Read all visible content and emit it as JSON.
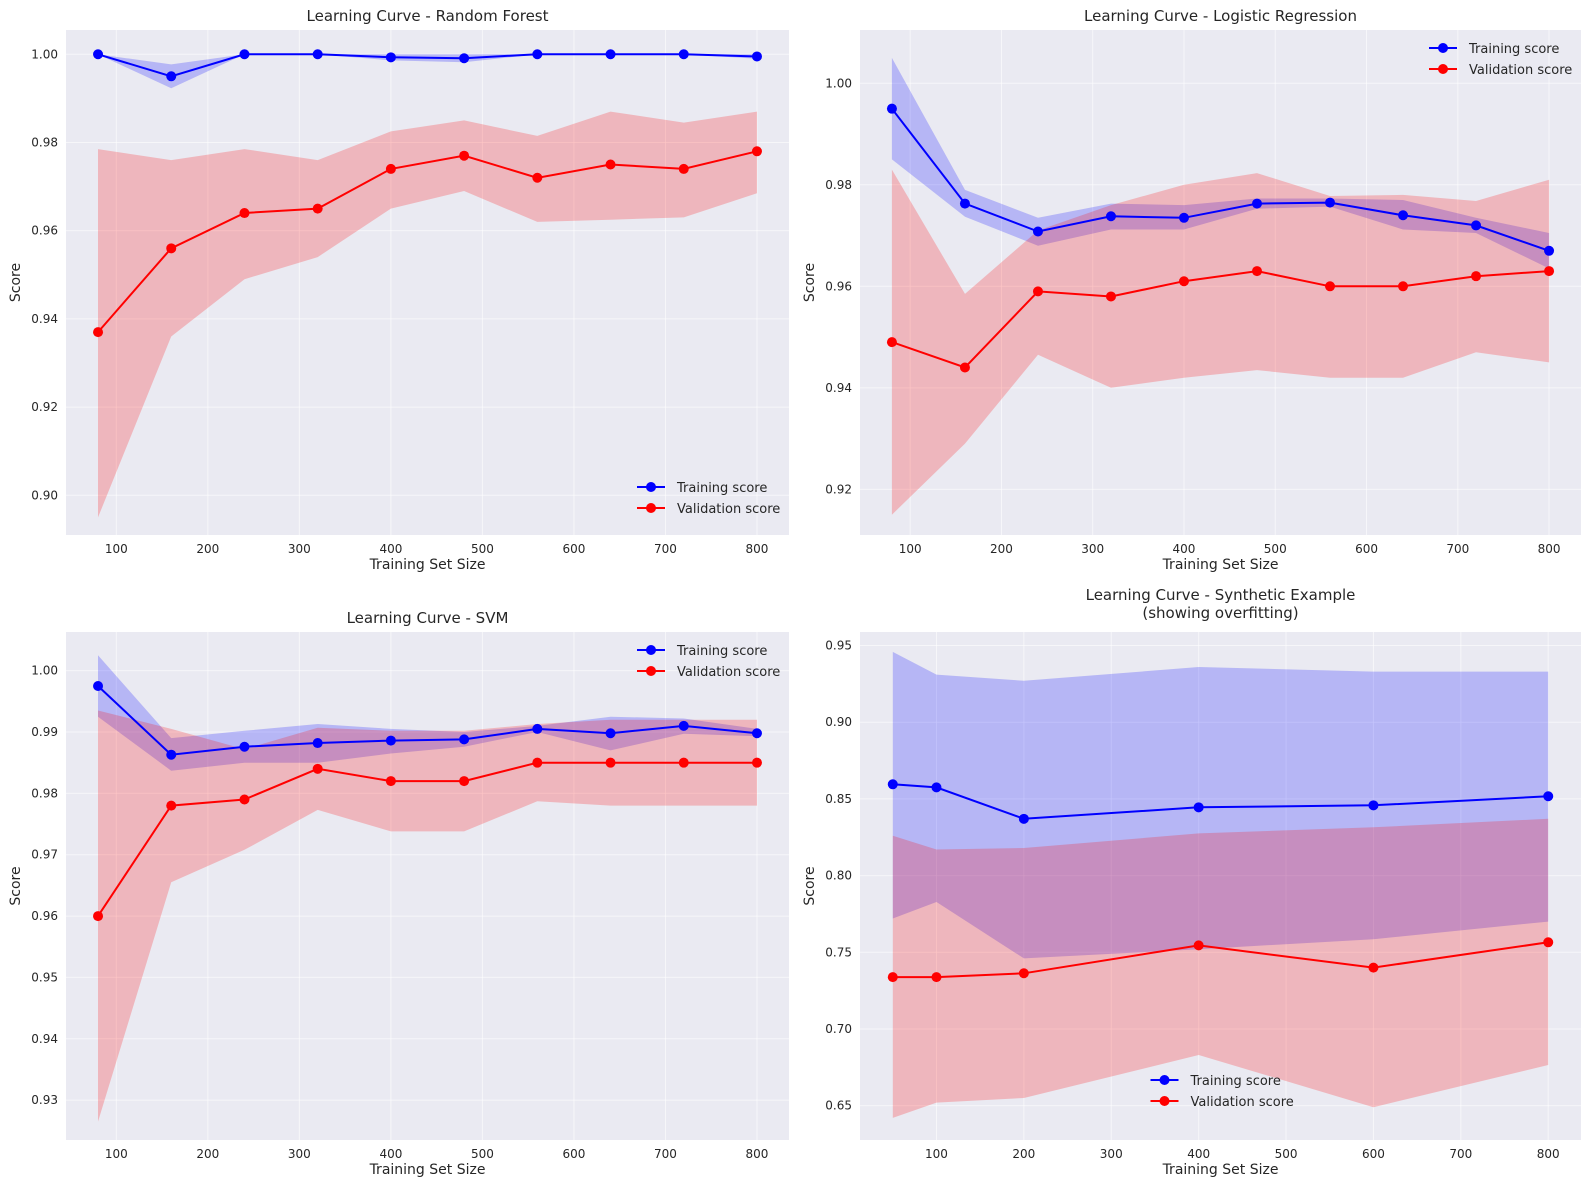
{
  "colors": {
    "training": "#0000ff",
    "validation": "#ff0000",
    "training_band": "#a8a8f5",
    "validation_band": "#f2aeb6",
    "axes_bg": "#eaeaf2",
    "grid": "#ffffff"
  },
  "chart_data": [
    {
      "type": "line",
      "title": "Learning Curve - Random Forest",
      "xlabel": "Training Set Size",
      "ylabel": "Score",
      "xlim": [
        45,
        835
      ],
      "ylim": [
        0.891,
        1.0055
      ],
      "xticks": [
        100,
        200,
        300,
        400,
        500,
        600,
        700,
        800
      ],
      "yticks": [
        0.9,
        0.92,
        0.94,
        0.96,
        0.98,
        1.0
      ],
      "ytick_labels": [
        "0.90",
        "0.92",
        "0.94",
        "0.96",
        "0.98",
        "1.00"
      ],
      "grid": true,
      "legend_position": "lower-right",
      "x": [
        80,
        160,
        240,
        320,
        400,
        480,
        560,
        640,
        720,
        800
      ],
      "series": [
        {
          "name": "Training score",
          "color": "training",
          "mean": [
            1.0,
            0.995,
            1.0,
            1.0,
            0.9993,
            0.9991,
            1.0,
            1.0,
            1.0,
            0.9995
          ],
          "lower": [
            1.0,
            0.9923,
            1.0,
            1.0,
            0.9986,
            0.9982,
            1.0,
            1.0,
            1.0,
            0.999
          ],
          "upper": [
            1.0,
            0.9977,
            1.0,
            1.0,
            1.0,
            1.0,
            1.0,
            1.0,
            1.0,
            1.0
          ]
        },
        {
          "name": "Validation score",
          "color": "validation",
          "mean": [
            0.937,
            0.956,
            0.964,
            0.965,
            0.974,
            0.977,
            0.972,
            0.975,
            0.974,
            0.978
          ],
          "lower": [
            0.895,
            0.936,
            0.949,
            0.954,
            0.965,
            0.969,
            0.962,
            0.9625,
            0.963,
            0.9685
          ],
          "upper": [
            0.9785,
            0.976,
            0.9785,
            0.976,
            0.9825,
            0.985,
            0.9815,
            0.987,
            0.9845,
            0.987
          ]
        }
      ]
    },
    {
      "type": "line",
      "title": "Learning Curve - Logistic Regression",
      "xlabel": "Training Set Size",
      "ylabel": "Score",
      "xlim": [
        45,
        835
      ],
      "ylim": [
        0.911,
        1.0105
      ],
      "xticks": [
        100,
        200,
        300,
        400,
        500,
        600,
        700,
        800
      ],
      "yticks": [
        0.92,
        0.94,
        0.96,
        0.98,
        1.0
      ],
      "ytick_labels": [
        "0.92",
        "0.94",
        "0.96",
        "0.98",
        "1.00"
      ],
      "grid": true,
      "legend_position": "upper-right",
      "x": [
        80,
        160,
        240,
        320,
        400,
        480,
        560,
        640,
        720,
        800
      ],
      "series": [
        {
          "name": "Training score",
          "color": "training",
          "mean": [
            0.995,
            0.9763,
            0.9708,
            0.9738,
            0.9735,
            0.9763,
            0.9765,
            0.974,
            0.972,
            0.967
          ],
          "lower": [
            0.985,
            0.9737,
            0.968,
            0.9712,
            0.9712,
            0.9753,
            0.9757,
            0.9712,
            0.9705,
            0.9635
          ],
          "upper": [
            1.005,
            0.979,
            0.9735,
            0.9763,
            0.976,
            0.9773,
            0.9773,
            0.977,
            0.9735,
            0.9705
          ]
        },
        {
          "name": "Validation score",
          "color": "validation",
          "mean": [
            0.949,
            0.944,
            0.959,
            0.958,
            0.961,
            0.963,
            0.96,
            0.96,
            0.962,
            0.963
          ],
          "lower": [
            0.915,
            0.929,
            0.9465,
            0.94,
            0.942,
            0.9435,
            0.942,
            0.942,
            0.947,
            0.945
          ],
          "upper": [
            0.983,
            0.9585,
            0.971,
            0.976,
            0.98,
            0.9823,
            0.9778,
            0.978,
            0.9768,
            0.981
          ]
        }
      ]
    },
    {
      "type": "line",
      "title": "Learning Curve - SVM",
      "xlabel": "Training Set Size",
      "ylabel": "Score",
      "xlim": [
        45,
        835
      ],
      "ylim": [
        0.9235,
        1.0063
      ],
      "xticks": [
        100,
        200,
        300,
        400,
        500,
        600,
        700,
        800
      ],
      "yticks": [
        0.93,
        0.94,
        0.95,
        0.96,
        0.97,
        0.98,
        0.99,
        1.0
      ],
      "ytick_labels": [
        "0.93",
        "0.94",
        "0.95",
        "0.96",
        "0.97",
        "0.98",
        "0.99",
        "1.00"
      ],
      "grid": true,
      "legend_position": "upper-right",
      "x": [
        80,
        160,
        240,
        320,
        400,
        480,
        560,
        640,
        720,
        800
      ],
      "series": [
        {
          "name": "Training score",
          "color": "training",
          "mean": [
            0.9975,
            0.9863,
            0.9876,
            0.9882,
            0.9886,
            0.9888,
            0.9905,
            0.9898,
            0.991,
            0.9898
          ],
          "lower": [
            0.9925,
            0.9837,
            0.985,
            0.985,
            0.9865,
            0.9876,
            0.99,
            0.987,
            0.9897,
            0.9893
          ],
          "upper": [
            1.0025,
            0.989,
            0.9902,
            0.9913,
            0.9905,
            0.99,
            0.991,
            0.9925,
            0.9922,
            0.9905
          ]
        },
        {
          "name": "Validation score",
          "color": "validation",
          "mean": [
            0.96,
            0.978,
            0.979,
            0.984,
            0.982,
            0.982,
            0.985,
            0.985,
            0.985,
            0.985
          ],
          "lower": [
            0.9265,
            0.9655,
            0.9708,
            0.9773,
            0.9738,
            0.9738,
            0.9787,
            0.978,
            0.978,
            0.978
          ],
          "upper": [
            0.9935,
            0.9905,
            0.9872,
            0.9907,
            0.9902,
            0.9902,
            0.9913,
            0.992,
            0.992,
            0.992
          ]
        }
      ]
    },
    {
      "type": "line",
      "title": "Learning Curve - Synthetic Example",
      "subtitle": "(showing overfitting)",
      "xlabel": "Training Set Size",
      "ylabel": "Score",
      "xlim": [
        12.5,
        837.5
      ],
      "ylim": [
        0.6276,
        0.9588
      ],
      "xticks": [
        100,
        200,
        300,
        400,
        500,
        600,
        700,
        800
      ],
      "yticks": [
        0.65,
        0.7,
        0.75,
        0.8,
        0.85,
        0.9,
        0.95
      ],
      "ytick_labels": [
        "0.65",
        "0.70",
        "0.75",
        "0.80",
        "0.85",
        "0.90",
        "0.95"
      ],
      "grid": true,
      "legend_position": "lower-center",
      "x": [
        50,
        100,
        200,
        400,
        600,
        800
      ],
      "series": [
        {
          "name": "Training score",
          "color": "training",
          "mean": [
            0.8595,
            0.8575,
            0.837,
            0.8445,
            0.8458,
            0.8517
          ],
          "lower": [
            0.772,
            0.7828,
            0.746,
            0.752,
            0.7585,
            0.77
          ],
          "upper": [
            0.9458,
            0.931,
            0.927,
            0.936,
            0.933,
            0.933
          ]
        },
        {
          "name": "Validation score",
          "color": "validation",
          "mean": [
            0.7338,
            0.7338,
            0.7363,
            0.7545,
            0.74,
            0.7565
          ],
          "lower": [
            0.642,
            0.652,
            0.655,
            0.683,
            0.649,
            0.6765
          ],
          "upper": [
            0.826,
            0.817,
            0.818,
            0.8275,
            0.8315,
            0.837
          ]
        }
      ]
    }
  ]
}
